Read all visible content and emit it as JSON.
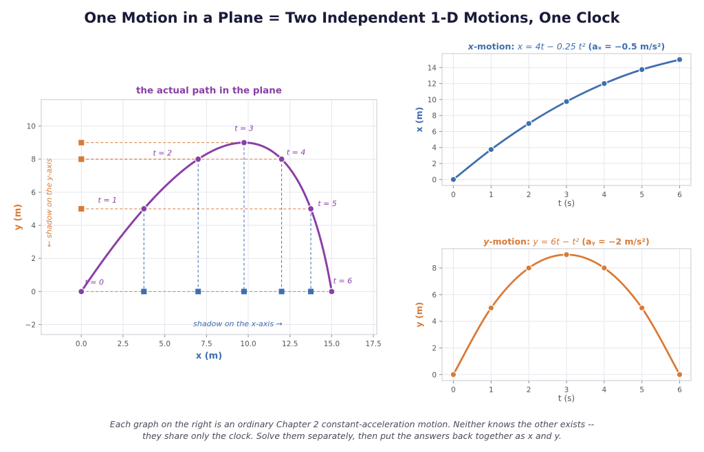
{
  "title": "One Motion in a Plane = Two Independent 1-D Motions, One Clock",
  "caption": {
    "line1": "Each graph on the right is an ordinary Chapter 2 constant-acceleration motion. Neither knows the other exists --",
    "line2": "they share only the clock. Solve them separately, then put the answers back together as x and y."
  },
  "colors": {
    "path": "#8a3fa6",
    "x_motion": "#3f6eb0",
    "y_motion": "#d97a38",
    "grid": "#e6e6ee",
    "frame": "#c8c8d0"
  },
  "chart_data": [
    {
      "id": "path",
      "type": "line",
      "title": "the actual path in the plane",
      "xlabel": "x  (m)",
      "ylabel": "y  (m)",
      "xlim": [
        -2.4,
        17.7
      ],
      "ylim": [
        -2.6,
        11.6
      ],
      "xticks": [
        0,
        2.5,
        5,
        7.5,
        10,
        12.5,
        15,
        17.5
      ],
      "xtick_labels": [
        "0.0",
        "2.5",
        "5.0",
        "7.5",
        "10.0",
        "12.5",
        "15.0",
        "17.5"
      ],
      "yticks": [
        -2,
        0,
        2,
        4,
        6,
        8,
        10
      ],
      "ytick_labels": [
        "−2",
        "0",
        "2",
        "4",
        "6",
        "8",
        "10"
      ],
      "grid": true,
      "points": [
        {
          "t": 0,
          "x": 0,
          "y": 0,
          "label": "t = 0"
        },
        {
          "t": 1,
          "x": 3.75,
          "y": 5,
          "label": "t = 1"
        },
        {
          "t": 2,
          "x": 7,
          "y": 8,
          "label": "t = 2"
        },
        {
          "t": 3,
          "x": 9.75,
          "y": 9,
          "label": "t = 3"
        },
        {
          "t": 4,
          "x": 12,
          "y": 8,
          "label": "t = 4"
        },
        {
          "t": 5,
          "x": 13.75,
          "y": 5,
          "label": "t = 5"
        },
        {
          "t": 6,
          "x": 15,
          "y": 0,
          "label": "t = 6"
        }
      ],
      "x_shadow_label": "shadow on the x-axis →",
      "y_shadow_label": "← shadow on the y-axis"
    },
    {
      "id": "xmotion",
      "type": "line",
      "title_parts": {
        "var": "x",
        "name": "-motion:",
        "eq": "x = 4t − 0.25 t²",
        "accel": "(aₓ = −0.5 m/s²)"
      },
      "xlabel": "t  (s)",
      "ylabel": "x  (m)",
      "xlim": [
        -0.3,
        6.3
      ],
      "ylim": [
        -0.75,
        15.75
      ],
      "xticks": [
        0,
        1,
        2,
        3,
        4,
        5,
        6
      ],
      "xtick_labels": [
        "0",
        "1",
        "2",
        "3",
        "4",
        "5",
        "6"
      ],
      "yticks": [
        0,
        2,
        4,
        6,
        8,
        10,
        12,
        14
      ],
      "ytick_labels": [
        "0",
        "2",
        "4",
        "6",
        "8",
        "10",
        "12",
        "14"
      ],
      "grid": true,
      "x": [
        0,
        1,
        2,
        3,
        4,
        5,
        6
      ],
      "y": [
        0,
        3.75,
        7,
        9.75,
        12,
        13.75,
        15
      ]
    },
    {
      "id": "ymotion",
      "type": "line",
      "title_parts": {
        "var": "y",
        "name": "-motion:",
        "eq": "y = 6t − t²",
        "accel": "(aᵧ = −2 m/s²)"
      },
      "xlabel": "t  (s)",
      "ylabel": "y  (m)",
      "xlim": [
        -0.3,
        6.3
      ],
      "ylim": [
        -0.45,
        9.45
      ],
      "xticks": [
        0,
        1,
        2,
        3,
        4,
        5,
        6
      ],
      "xtick_labels": [
        "0",
        "1",
        "2",
        "3",
        "4",
        "5",
        "6"
      ],
      "yticks": [
        0,
        2,
        4,
        6,
        8
      ],
      "ytick_labels": [
        "0",
        "2",
        "4",
        "6",
        "8"
      ],
      "grid": true,
      "x": [
        0,
        1,
        2,
        3,
        4,
        5,
        6
      ],
      "y": [
        0,
        5,
        8,
        9,
        8,
        5,
        0
      ]
    }
  ]
}
